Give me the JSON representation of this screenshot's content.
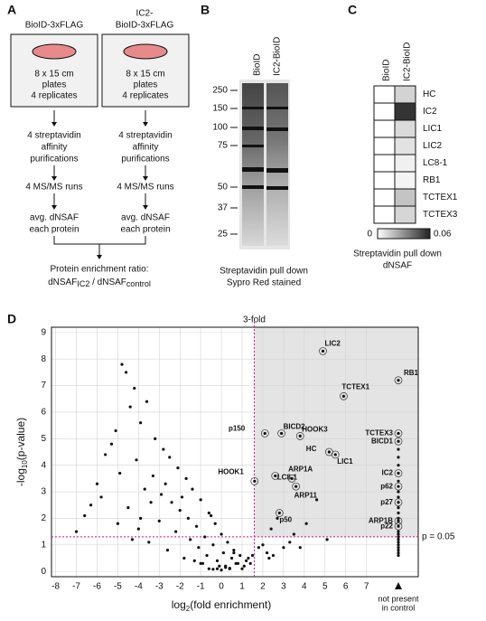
{
  "panel_a": {
    "letter": "A",
    "col1_title": [
      "BioID-3xFLAG"
    ],
    "col2_title": [
      "IC2-",
      "BioID-3xFLAG"
    ],
    "box": [
      "8 x 15 cm",
      "plates",
      "4 replicates"
    ],
    "step1": [
      "4 streptavidin",
      "affinity",
      "purifications"
    ],
    "step2": [
      "4 MS/MS runs"
    ],
    "step3": [
      "avg. dNSAF",
      "each protein"
    ],
    "ratio_title": "Protein enrichment ratio:",
    "ratio": {
      "num": "dNSAF",
      "num_sub": "IC2",
      "sep": " / dNSAF",
      "den_sub": "control"
    }
  },
  "panel_b": {
    "letter": "B",
    "lanes": [
      "BioID",
      "IC2-BioID"
    ],
    "ladder": [
      "250",
      "150",
      "100",
      "75",
      "50",
      "37",
      "25"
    ],
    "caption": [
      "Streptavidin pull down",
      "Sypro Red stained"
    ]
  },
  "panel_c": {
    "letter": "C",
    "columns": [
      "BioID",
      "IC2-BioID"
    ],
    "rows": [
      "HC",
      "IC2",
      "LIC1",
      "LIC2",
      "LC8-1",
      "RB1",
      "TCTEX1",
      "TCTEX3"
    ],
    "values": [
      [
        0,
        0.012
      ],
      [
        0,
        0.055
      ],
      [
        0,
        0.01
      ],
      [
        0,
        0.008
      ],
      [
        0,
        0.004
      ],
      [
        0,
        0.003
      ],
      [
        0,
        0.016
      ],
      [
        0,
        0.011
      ]
    ],
    "scale": [
      0,
      0.06
    ],
    "scale_labels": [
      "0",
      "0.06"
    ],
    "caption": [
      "Streptavidin pull down",
      "dNSAF"
    ]
  },
  "chart_data": {
    "type": "scatter",
    "letter": "D",
    "x_label": {
      "base": "log",
      "sub": "2",
      "rest": "(fold enrichment)"
    },
    "y_label": {
      "base": "-log",
      "sub": "10",
      "rest": "(p-value)"
    },
    "xlim": [
      -8.2,
      9.5
    ],
    "ylim": [
      -0.2,
      9.2
    ],
    "xticks": [
      -8,
      -7,
      -6,
      -5,
      -4,
      -3,
      -2,
      -1,
      0,
      1,
      2,
      3,
      4,
      5,
      6,
      7
    ],
    "yticks": [
      0,
      1,
      2,
      3,
      4,
      5,
      6,
      7,
      8,
      9
    ],
    "grid": true,
    "fold_line": {
      "value": 1.585,
      "label": "3-fold"
    },
    "p_line": {
      "value": 1.301,
      "label": "p = 0.05"
    },
    "not_present_label": [
      "not present",
      "in control"
    ],
    "background": {
      "color": "#111",
      "x": [
        -4.8,
        -4.6,
        -4.2,
        -4.4,
        -3.9,
        -5.1,
        -3.6,
        -3.2,
        -2.8,
        -2.5,
        -2.1,
        -1.7,
        -1.4,
        -1.0,
        -0.6,
        -0.3,
        0,
        0.3,
        0.6,
        0.9,
        1.2,
        -5.6,
        -6.0,
        -5.3,
        -4.9,
        -4.1,
        -3.7,
        -3.3,
        -2.9,
        -2.4,
        -2.0,
        -1.6,
        -1.2,
        -0.8,
        -0.4,
        0.1,
        0.5,
        0.8,
        1.1,
        1.4,
        -6.3,
        -5.8,
        -4.5,
        -3.9,
        -3.0,
        -2.2,
        -1.5,
        -1.1,
        -0.7,
        -0.2,
        0.2,
        0.4,
        0.7,
        1.0,
        1.3,
        -2.7,
        -3.4,
        -4.0,
        -1.9,
        -0.5,
        2.0,
        2.4,
        3.0,
        3.5,
        4.1,
        4.6,
        2.2,
        2.7,
        3.3,
        -7.0,
        -6.6,
        -5.0,
        -4.3,
        -3.5,
        -2.6,
        -1.8,
        -1.3,
        -0.9,
        -0.1,
        0.6,
        1.5,
        1.8,
        2.3,
        -0.2,
        0.0,
        0.2,
        -0.4,
        0.4,
        -0.6,
        -1.0,
        3.8,
        5.1,
        2.5
      ],
      "y": [
        7.8,
        7.5,
        6.9,
        6.2,
        5.6,
        5.3,
        6.4,
        5.0,
        4.6,
        4.3,
        3.9,
        3.5,
        3.1,
        2.7,
        2.2,
        1.8,
        1.4,
        1.1,
        0.8,
        0.6,
        0.4,
        4.4,
        3.3,
        4.8,
        3.7,
        4.2,
        3.1,
        3.6,
        2.9,
        2.6,
        2.3,
        2.0,
        1.7,
        1.3,
        1.0,
        0.7,
        0.5,
        0.3,
        0.2,
        0.3,
        2.5,
        2.8,
        2.4,
        2.0,
        1.9,
        1.5,
        1.2,
        0.9,
        0.6,
        0.4,
        0.2,
        0.1,
        0.3,
        0.1,
        0.5,
        3.3,
        2.6,
        1.6,
        2.8,
        2.1,
        1.0,
        1.6,
        0.9,
        1.4,
        1.8,
        2.7,
        0.7,
        2.0,
        1.1,
        1.5,
        2.1,
        1.8,
        1.2,
        1.1,
        0.8,
        0.5,
        0.4,
        0.3,
        0.2,
        0.7,
        0.6,
        0.9,
        0.5,
        0.1,
        0.05,
        0.15,
        0.08,
        0.12,
        0.1,
        0.3,
        0.9,
        1.2,
        0.6
      ]
    },
    "points": [
      {
        "label": "LIC2",
        "x": 4.9,
        "y": 8.3,
        "color": "#4a4e8a"
      },
      {
        "label": "TCTEX1",
        "x": 5.9,
        "y": 6.6,
        "color": "#4a4e8a"
      },
      {
        "label": "p150",
        "x": 2.1,
        "y": 5.2,
        "color": "#4b8fb5"
      },
      {
        "label": "BICD2",
        "x": 2.9,
        "y": 5.2,
        "color": "#c9b227"
      },
      {
        "label": "HOOK3",
        "x": 3.8,
        "y": 5.1,
        "color": "#c9b227"
      },
      {
        "label": "HC",
        "x": 5.2,
        "y": 4.5,
        "color": "#4a4e8a"
      },
      {
        "label": "LIC1",
        "x": 5.5,
        "y": 4.4,
        "color": "#4a4e8a"
      },
      {
        "label": "HOOK1",
        "x": 1.6,
        "y": 3.4,
        "color": "#c9b227"
      },
      {
        "label": "LC8-1",
        "x": 2.6,
        "y": 3.6,
        "color": "#4a4e8a"
      },
      {
        "label": "ARP1A",
        "x": 3.4,
        "y": 3.5,
        "color": "#4b8fb5"
      },
      {
        "label": "ARP11",
        "x": 3.6,
        "y": 3.2,
        "color": "#4b8fb5"
      },
      {
        "label": "p50",
        "x": 2.8,
        "y": 2.2,
        "color": "#4b8fb5"
      }
    ],
    "not_present": [
      {
        "label": "RB1",
        "y": 7.2,
        "color": "#4a4e8a"
      },
      {
        "label": "TCTEX3",
        "y": 5.2,
        "color": "#4a4e8a"
      },
      {
        "label": "BICD1",
        "y": 4.9,
        "color": "#c9b227"
      },
      {
        "label": "IC2",
        "y": 3.7,
        "color": "#c0185a"
      },
      {
        "label": "p62",
        "y": 3.2,
        "color": "#4b8fb5"
      },
      {
        "label": "p27",
        "y": 2.6,
        "color": "#4b8fb5"
      },
      {
        "label": "ARP1B",
        "y": 1.9,
        "color": "#4b8fb5"
      },
      {
        "label": "p22",
        "y": 1.7,
        "color": "#4b8fb5"
      }
    ],
    "not_present_other": [
      4.6,
      4.3,
      4.0,
      3.4,
      3.0,
      2.8,
      2.4,
      2.2,
      2.0,
      1.5,
      1.4,
      1.3,
      1.2,
      1.1,
      1.0,
      0.9,
      0.8,
      0.7,
      0.6
    ]
  }
}
